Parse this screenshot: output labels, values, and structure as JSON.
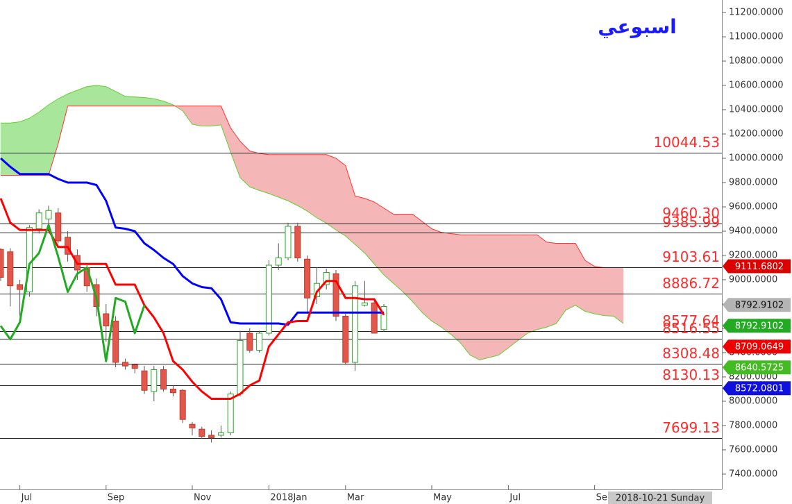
{
  "chart_data": {
    "type": "candlestick",
    "title": "اسبوعي",
    "title_color": "#1a1aff",
    "cursor_label": "2018-10-21 Sunday",
    "grid": false,
    "ylim": [
      7274,
      11303
    ],
    "yticks": [
      {
        "value": 11200,
        "label": "11200.0000"
      },
      {
        "value": 11000,
        "label": "11000.0000"
      },
      {
        "value": 10800,
        "label": "10800.0000"
      },
      {
        "value": 10600,
        "label": "10600.0000"
      },
      {
        "value": 10400,
        "label": "10400.0000"
      },
      {
        "value": 10200,
        "label": "10200.0000"
      },
      {
        "value": 10000,
        "label": "10000.0000"
      },
      {
        "value": 9800,
        "label": "9800.0000"
      },
      {
        "value": 9600,
        "label": "9600.0000"
      },
      {
        "value": 9400,
        "label": "9400.0000"
      },
      {
        "value": 9200,
        "label": "9200.0000"
      },
      {
        "value": 9000,
        "label": "9000.0000"
      },
      {
        "value": 8800,
        "label": "8800.0000"
      },
      {
        "value": 8600,
        "label": "8600.0000"
      },
      {
        "value": 8400,
        "label": "8400.0000"
      },
      {
        "value": 8200,
        "label": "8200.0000"
      },
      {
        "value": 8000,
        "label": "8000.0000"
      },
      {
        "value": 7800,
        "label": "7800.0000"
      },
      {
        "value": 7600,
        "label": "7600.0000"
      },
      {
        "value": 7400,
        "label": "7400.0000"
      }
    ],
    "categories": [
      null,
      null,
      "Jul",
      null,
      null,
      null,
      null,
      null,
      null,
      null,
      null,
      "Sep",
      null,
      null,
      null,
      null,
      null,
      null,
      null,
      null,
      "Nov",
      null,
      null,
      null,
      null,
      null,
      null,
      null,
      "2018Jan",
      null,
      null,
      null,
      null,
      null,
      null,
      null,
      "Mar",
      null,
      null,
      null,
      null,
      null,
      null,
      null,
      null,
      "May",
      null,
      null,
      null,
      null,
      null,
      null,
      null,
      "Jul",
      null,
      null,
      null,
      null,
      null,
      null,
      null,
      null,
      "Sep",
      null,
      null,
      null
    ],
    "candles": {
      "up_color": "#22aa22",
      "down_color": "#e2574c",
      "open": [
        9250,
        9230,
        8960,
        8900,
        9420,
        9500,
        9550,
        9350,
        9200,
        9100,
        8960,
        8720,
        8660,
        8320,
        8300,
        8250,
        8080,
        8260,
        8100,
        8090,
        7810,
        7770,
        7720,
        7720,
        7740,
        8060,
        8560,
        8420,
        8560,
        9120,
        9180,
        9440,
        9170,
        8860,
        8960,
        9050,
        8700,
        8320,
        8790,
        8810,
        8590,
        null,
        null,
        null,
        null,
        null,
        null,
        null,
        null,
        null,
        null,
        null,
        null,
        null,
        null,
        null,
        null,
        null,
        null,
        null,
        null,
        null,
        null,
        null,
        null,
        null
      ],
      "high": [
        9260,
        9260,
        9000,
        9450,
        9580,
        9610,
        9590,
        9400,
        9250,
        9120,
        9010,
        8800,
        8700,
        8350,
        8310,
        8290,
        8290,
        8290,
        8130,
        8100,
        7830,
        7790,
        7760,
        7800,
        8080,
        8580,
        8600,
        8580,
        9160,
        9300,
        9470,
        9470,
        9200,
        9100,
        9090,
        9080,
        8720,
        8990,
        8990,
        8830,
        8800,
        null,
        null,
        null,
        null,
        null,
        null,
        null,
        null,
        null,
        null,
        null,
        null,
        null,
        null,
        null,
        null,
        null,
        null,
        null,
        null,
        null,
        null,
        null,
        null,
        null
      ],
      "low": [
        8990,
        8780,
        8700,
        8860,
        9380,
        9420,
        9300,
        9150,
        9000,
        8900,
        8700,
        8490,
        8280,
        8260,
        8230,
        8060,
        8000,
        8080,
        8040,
        7820,
        7720,
        7690,
        7660,
        7700,
        7720,
        8040,
        8400,
        8400,
        8540,
        9080,
        9160,
        9150,
        8720,
        8800,
        8920,
        8660,
        8300,
        8250,
        8780,
        8560,
        8570,
        null,
        null,
        null,
        null,
        null,
        null,
        null,
        null,
        null,
        null,
        null,
        null,
        null,
        null,
        null,
        null,
        null,
        null,
        null,
        null,
        null,
        null,
        null,
        null,
        null
      ],
      "close": [
        9020,
        8950,
        8920,
        9430,
        9550,
        9570,
        9320,
        9210,
        9080,
        8950,
        8780,
        8620,
        8320,
        8290,
        8270,
        8090,
        8260,
        8100,
        8070,
        7850,
        7780,
        7710,
        7700,
        7740,
        8060,
        8500,
        8420,
        8560,
        9120,
        9180,
        9440,
        9180,
        8850,
        8970,
        9060,
        8700,
        8320,
        8950,
        8810,
        8560,
        8780,
        null,
        null,
        null,
        null,
        null,
        null,
        null,
        null,
        null,
        null,
        null,
        null,
        null,
        null,
        null,
        null,
        null,
        null,
        null,
        null,
        null,
        null,
        null,
        null,
        null
      ]
    },
    "cloud": {
      "bull_color": "#a8e69c",
      "bear_color": "#f4b6b6",
      "span_a_color": "#66cc33",
      "span_b_color": "#ff3333",
      "span_a": [
        10290,
        10290,
        10300,
        10330,
        10380,
        10440,
        10490,
        10530,
        10560,
        10590,
        10600,
        10590,
        10550,
        10510,
        10505,
        10500,
        10490,
        10470,
        10440,
        10390,
        10280,
        10265,
        10265,
        10275,
        10050,
        9840,
        9765,
        9735,
        9710,
        9680,
        9650,
        9610,
        9565,
        9510,
        9465,
        9410,
        9360,
        9290,
        9220,
        9130,
        9040,
        8970,
        8900,
        8820,
        8730,
        8660,
        8610,
        8550,
        8480,
        8380,
        8340,
        8360,
        8380,
        8440,
        8500,
        8560,
        8590,
        8610,
        8640,
        8750,
        8790,
        8740,
        8720,
        8705,
        8700,
        8640
      ],
      "span_b": [
        9860,
        9860,
        9860,
        9860,
        9860,
        9860,
        10120,
        10430,
        10430,
        10430,
        10430,
        10430,
        10430,
        10430,
        10430,
        10430,
        10430,
        10430,
        10430,
        10430,
        10430,
        10430,
        10430,
        10430,
        10250,
        10140,
        10060,
        10040,
        10030,
        10030,
        10030,
        10030,
        10030,
        10030,
        10030,
        10000,
        9940,
        9690,
        9670,
        9640,
        9590,
        9540,
        9540,
        9540,
        9480,
        9420,
        9390,
        9380,
        9370,
        9370,
        9370,
        9370,
        9370,
        9370,
        9370,
        9370,
        9370,
        9310,
        9300,
        9300,
        9300,
        9160,
        9110,
        9100,
        9100,
        9100
      ]
    },
    "lines": [
      {
        "color": "#0000ff",
        "values": [
          10000,
          9930,
          9870,
          9870,
          9870,
          9870,
          9830,
          9800,
          9800,
          9800,
          9780,
          9650,
          9430,
          9420,
          9400,
          9300,
          9245,
          9180,
          9130,
          9030,
          8970,
          8940,
          8930,
          8840,
          8650,
          8640,
          8640,
          8640,
          8640,
          8640,
          8630,
          8730,
          8730,
          8730,
          8730,
          8730,
          8730,
          8730,
          8730,
          8730,
          8730,
          null,
          null,
          null,
          null,
          null,
          null,
          null,
          null,
          null,
          null,
          null,
          null,
          null,
          null,
          null,
          null,
          null,
          null,
          null,
          null,
          null,
          null,
          null,
          null,
          null
        ]
      },
      {
        "color": "#ff0000",
        "values": [
          9670,
          9470,
          9410,
          9410,
          9410,
          9410,
          9270,
          9270,
          9130,
          9130,
          9130,
          9130,
          8960,
          8960,
          8960,
          8790,
          8690,
          8560,
          8330,
          8260,
          8160,
          8080,
          8020,
          8020,
          8020,
          8060,
          8130,
          8170,
          8450,
          8550,
          8650,
          8660,
          8660,
          8900,
          8990,
          8990,
          8850,
          8850,
          8840,
          8840,
          8710,
          null,
          null,
          null,
          null,
          null,
          null,
          null,
          null,
          null,
          null,
          null,
          null,
          null,
          null,
          null,
          null,
          null,
          null,
          null,
          null,
          null,
          null,
          null,
          null,
          null
        ]
      },
      {
        "color": "#22aa22",
        "values": [
          8620,
          8510,
          8650,
          9130,
          9220,
          9450,
          9190,
          8900,
          9050,
          9100,
          8850,
          8330,
          8850,
          8820,
          8560,
          8790,
          null,
          null,
          null,
          null,
          null,
          null,
          null,
          null,
          null,
          null,
          null,
          null,
          null,
          null,
          null,
          null,
          null,
          null,
          null,
          null,
          null,
          null,
          null,
          null,
          null,
          null,
          null,
          null,
          null,
          null,
          null,
          null,
          null,
          null,
          null,
          null,
          null,
          null,
          null,
          null,
          null,
          null,
          null,
          null,
          null,
          null,
          null,
          null,
          null,
          null
        ]
      }
    ],
    "level_color": "#ff2a2a",
    "levels": [
      10044.53,
      {
        "value": 9460.3,
        "label": "9460.30"
      },
      9385.99,
      9103.61,
      8886.72,
      8577.64,
      8516.55,
      8308.48,
      8130.13,
      7699.13
    ],
    "price_tags": [
      {
        "value": 9111.6802,
        "color": "#dd0000",
        "text_color": "#ffffff"
      },
      {
        "value": 8792.9102,
        "color": "#b4b4b4",
        "text_color": "#111111"
      },
      {
        "value": 8792.9102,
        "color": "#22aa22",
        "text_color": "#ffffff"
      },
      {
        "value": 8709.0649,
        "color": "#ee0000",
        "text_color": "#ffffff"
      },
      {
        "value": 8640.5725,
        "color": "#44bb22",
        "text_color": "#ffffff"
      },
      {
        "value": 8572.0801,
        "color": "#1010dd",
        "text_color": "#ffffff"
      }
    ]
  }
}
